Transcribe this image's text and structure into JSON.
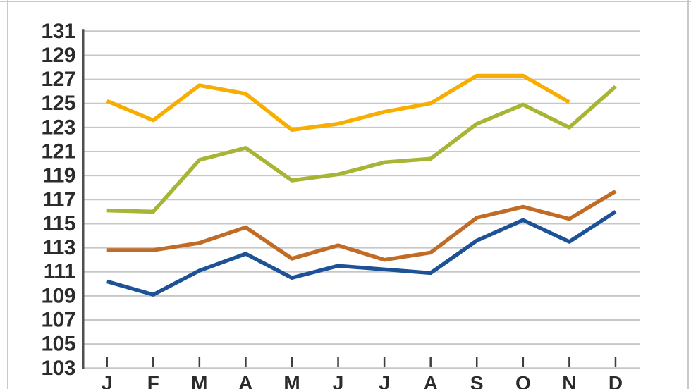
{
  "page": {
    "background": "#ffffff",
    "frame_color": "#c9c9c9"
  },
  "chart_data": {
    "type": "line",
    "title": "",
    "xlabel": "",
    "ylabel": "",
    "categories": [
      "J",
      "F",
      "M",
      "A",
      "M",
      "J",
      "J",
      "A",
      "S",
      "O",
      "N",
      "D"
    ],
    "series": [
      {
        "name": "yellow",
        "color": "#F8AE00",
        "values": [
          125.2,
          123.6,
          126.5,
          125.8,
          122.8,
          123.3,
          124.3,
          125.0,
          127.3,
          127.3,
          125.1,
          null
        ]
      },
      {
        "name": "green",
        "color": "#A8B534",
        "values": [
          116.1,
          116.0,
          120.3,
          121.3,
          118.6,
          119.1,
          120.1,
          120.4,
          123.3,
          124.9,
          123.0,
          126.4
        ]
      },
      {
        "name": "brown",
        "color": "#C16C26",
        "values": [
          112.8,
          112.8,
          113.4,
          114.7,
          112.1,
          113.2,
          112.0,
          112.6,
          115.5,
          116.4,
          115.4,
          117.7
        ]
      },
      {
        "name": "blue",
        "color": "#1D5396",
        "values": [
          110.2,
          109.1,
          111.1,
          112.5,
          110.5,
          111.5,
          111.2,
          110.9,
          113.6,
          115.3,
          113.5,
          116.0
        ]
      }
    ],
    "ylim": [
      103,
      131
    ],
    "yticks": [
      131,
      129,
      127,
      125,
      123,
      121,
      119,
      117,
      115,
      113,
      111,
      109,
      107,
      105,
      103
    ],
    "grid": true,
    "legend": "none",
    "grid_color": "#c7c7c7",
    "axis_color": "#4f4f4f",
    "label_color": "#2b2b2b"
  }
}
